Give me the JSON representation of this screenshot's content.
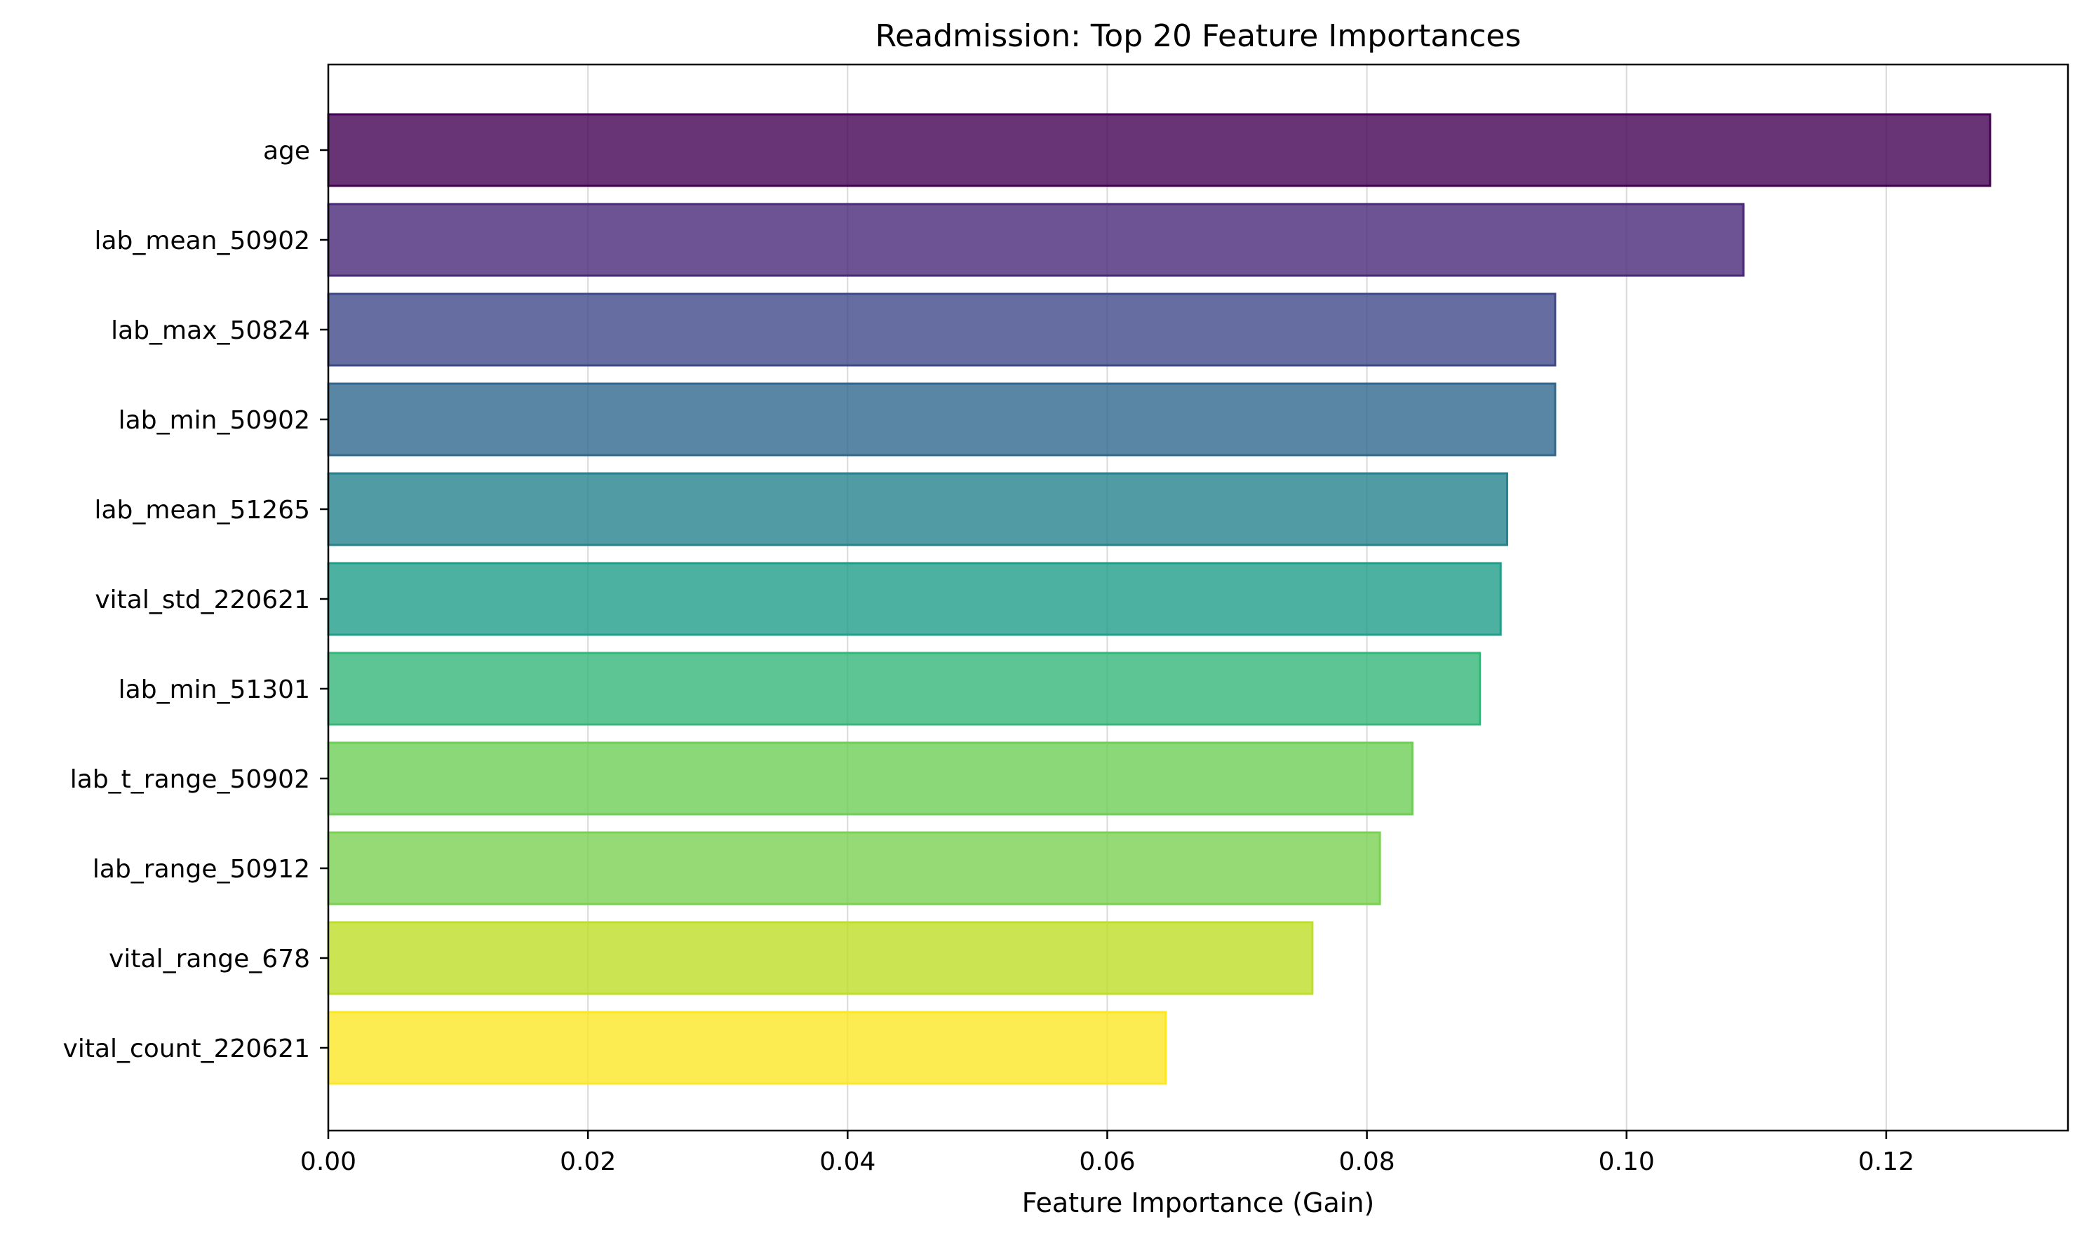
{
  "chart_data": {
    "type": "bar",
    "orientation": "horizontal",
    "title": "Readmission: Top 20 Feature Importances",
    "xlabel": "Feature Importance (Gain)",
    "ylabel": "",
    "xlim": [
      0,
      0.134
    ],
    "xticks": [
      0.0,
      0.02,
      0.04,
      0.06,
      0.08,
      0.1,
      0.12
    ],
    "xtick_labels": [
      "0.00",
      "0.02",
      "0.04",
      "0.06",
      "0.08",
      "0.10",
      "0.12"
    ],
    "grid": "x-axis, light gray",
    "categories": [
      "age",
      "lab_mean_50902",
      "lab_max_50824",
      "lab_min_50902",
      "lab_mean_51265",
      "vital_std_220621",
      "lab_min_51301",
      "lab_t_range_50902",
      "lab_range_50912",
      "vital_range_678",
      "vital_count_220621"
    ],
    "values": [
      0.128,
      0.109,
      0.0945,
      0.0945,
      0.0908,
      0.0903,
      0.0887,
      0.0835,
      0.081,
      0.0758,
      0.0645
    ],
    "colors": [
      "#440154",
      "#482878",
      "#3e4989",
      "#31688e",
      "#26828e",
      "#1f9e89",
      "#35b779",
      "#6ece58",
      "#7ad151",
      "#bddf26",
      "#fde725"
    ],
    "bar_alpha": 0.8
  }
}
